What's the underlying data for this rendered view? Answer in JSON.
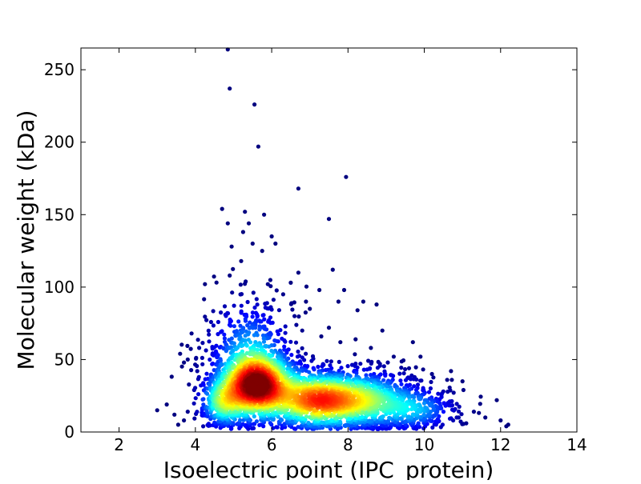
{
  "chart_data": {
    "type": "scatter",
    "title": "",
    "xlabel": "Isoelectric point (IPC_protein)",
    "ylabel": "Molecular weight (kDa)",
    "xlim": [
      1,
      14
    ],
    "ylim": [
      0,
      265
    ],
    "x_ticks": [
      2,
      4,
      6,
      8,
      10,
      12,
      14
    ],
    "y_ticks": [
      0,
      50,
      100,
      150,
      200,
      250
    ],
    "colormap": [
      "#00007f",
      "#0000ff",
      "#007fff",
      "#00ffff",
      "#7fff7f",
      "#ffff00",
      "#ff7f00",
      "#ff0000",
      "#7f0000"
    ],
    "density_clusters": [
      {
        "center": [
          5.6,
          32
        ],
        "spread": [
          0.55,
          13
        ],
        "count": 1500,
        "density_peak": 1.0
      },
      {
        "center": [
          8.1,
          22
        ],
        "spread": [
          0.9,
          11
        ],
        "count": 1300,
        "density_peak": 0.62
      },
      {
        "center": [
          7.0,
          22
        ],
        "spread": [
          0.6,
          11
        ],
        "count": 500,
        "density_peak": 0.5
      },
      {
        "center": [
          4.7,
          20
        ],
        "spread": [
          0.35,
          10
        ],
        "count": 300,
        "density_peak": 0.4
      },
      {
        "center": [
          5.4,
          60
        ],
        "spread": [
          0.6,
          18
        ],
        "count": 350,
        "density_peak": 0.25
      },
      {
        "center": [
          9.8,
          15
        ],
        "spread": [
          0.6,
          8
        ],
        "count": 250,
        "density_peak": 0.25
      }
    ],
    "outliers": [
      [
        4.85,
        264
      ],
      [
        4.9,
        237
      ],
      [
        5.55,
        226
      ],
      [
        5.65,
        197
      ],
      [
        7.95,
        176
      ],
      [
        6.7,
        168
      ],
      [
        4.7,
        154
      ],
      [
        5.3,
        152
      ],
      [
        7.5,
        147
      ],
      [
        4.85,
        144
      ],
      [
        5.4,
        144
      ],
      [
        5.8,
        150
      ],
      [
        5.25,
        138
      ],
      [
        6.0,
        135
      ],
      [
        5.5,
        130
      ],
      [
        5.75,
        125
      ],
      [
        6.1,
        130
      ],
      [
        4.95,
        128
      ],
      [
        5.2,
        118
      ],
      [
        7.6,
        112
      ],
      [
        6.7,
        110
      ],
      [
        4.25,
        102
      ],
      [
        4.9,
        108
      ],
      [
        5.9,
        102
      ],
      [
        6.5,
        103
      ],
      [
        7.25,
        98
      ],
      [
        7.9,
        98
      ],
      [
        6.9,
        90
      ],
      [
        7.75,
        90
      ],
      [
        8.4,
        90
      ],
      [
        8.75,
        88
      ],
      [
        8.25,
        84
      ],
      [
        6.3,
        95
      ],
      [
        7.0,
        85
      ],
      [
        6.6,
        80
      ],
      [
        8.9,
        70
      ],
      [
        9.7,
        62
      ],
      [
        9.9,
        52
      ],
      [
        10.2,
        40
      ],
      [
        10.6,
        36
      ],
      [
        10.7,
        42
      ],
      [
        11.0,
        35
      ],
      [
        11.3,
        14
      ],
      [
        11.6,
        10
      ],
      [
        11.9,
        22
      ],
      [
        12.0,
        8
      ],
      [
        12.2,
        5
      ],
      [
        12.15,
        4
      ],
      [
        3.9,
        68
      ],
      [
        3.6,
        54
      ],
      [
        3.8,
        50
      ],
      [
        3.7,
        48
      ],
      [
        4.1,
        58
      ],
      [
        4.05,
        42
      ],
      [
        3.0,
        15
      ],
      [
        3.25,
        19
      ],
      [
        3.45,
        12
      ],
      [
        3.7,
        8
      ],
      [
        3.55,
        5
      ],
      [
        3.8,
        14
      ],
      [
        10.9,
        10
      ],
      [
        11.1,
        6
      ],
      [
        10.5,
        28
      ],
      [
        10.4,
        20
      ],
      [
        9.6,
        44
      ],
      [
        9.2,
        52
      ],
      [
        8.6,
        58
      ],
      [
        8.2,
        64
      ],
      [
        7.8,
        62
      ],
      [
        7.3,
        66
      ],
      [
        6.8,
        70
      ],
      [
        7.5,
        72
      ]
    ]
  }
}
